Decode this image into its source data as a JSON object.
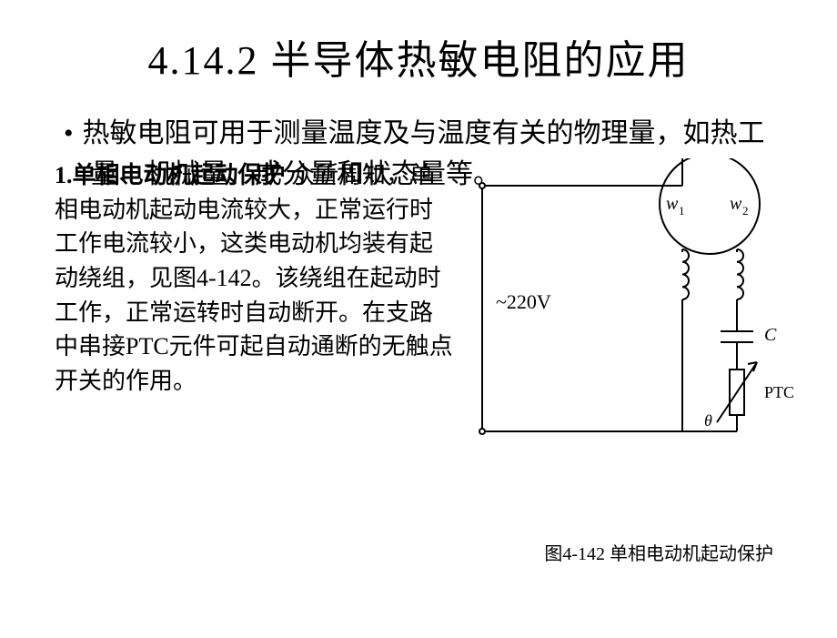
{
  "title": "4.14.2  半导体热敏电阻的应用",
  "bullet_text": "热敏电阻可用于测量温度及与温度有关的物理量，如热工量、机械量、成分量和状态量等。",
  "sub_heading": "1.单相电动机起动保护 ",
  "body_text": "众所周知，单相电动机起动电流较大，正常运行时工作电流较小，这类电动机均装有起动绕组，见图4-142。该绕组在起动时工作，正常运转时自动断开。在支路中串接PTC元件可起自动通断的无触点开关的作用。",
  "caption": "图4-142  单相电动机起动保护",
  "diagram": {
    "voltage_label": "~220V",
    "winding1_label": "w",
    "winding1_sub": "1",
    "winding2_label": "w",
    "winding2_sub": "2",
    "cap_label": "C",
    "ptc_label": "PTC",
    "theta_label": "θ",
    "colors": {
      "stroke": "#000000",
      "bg": "#ffffff"
    },
    "line_width": 2
  }
}
